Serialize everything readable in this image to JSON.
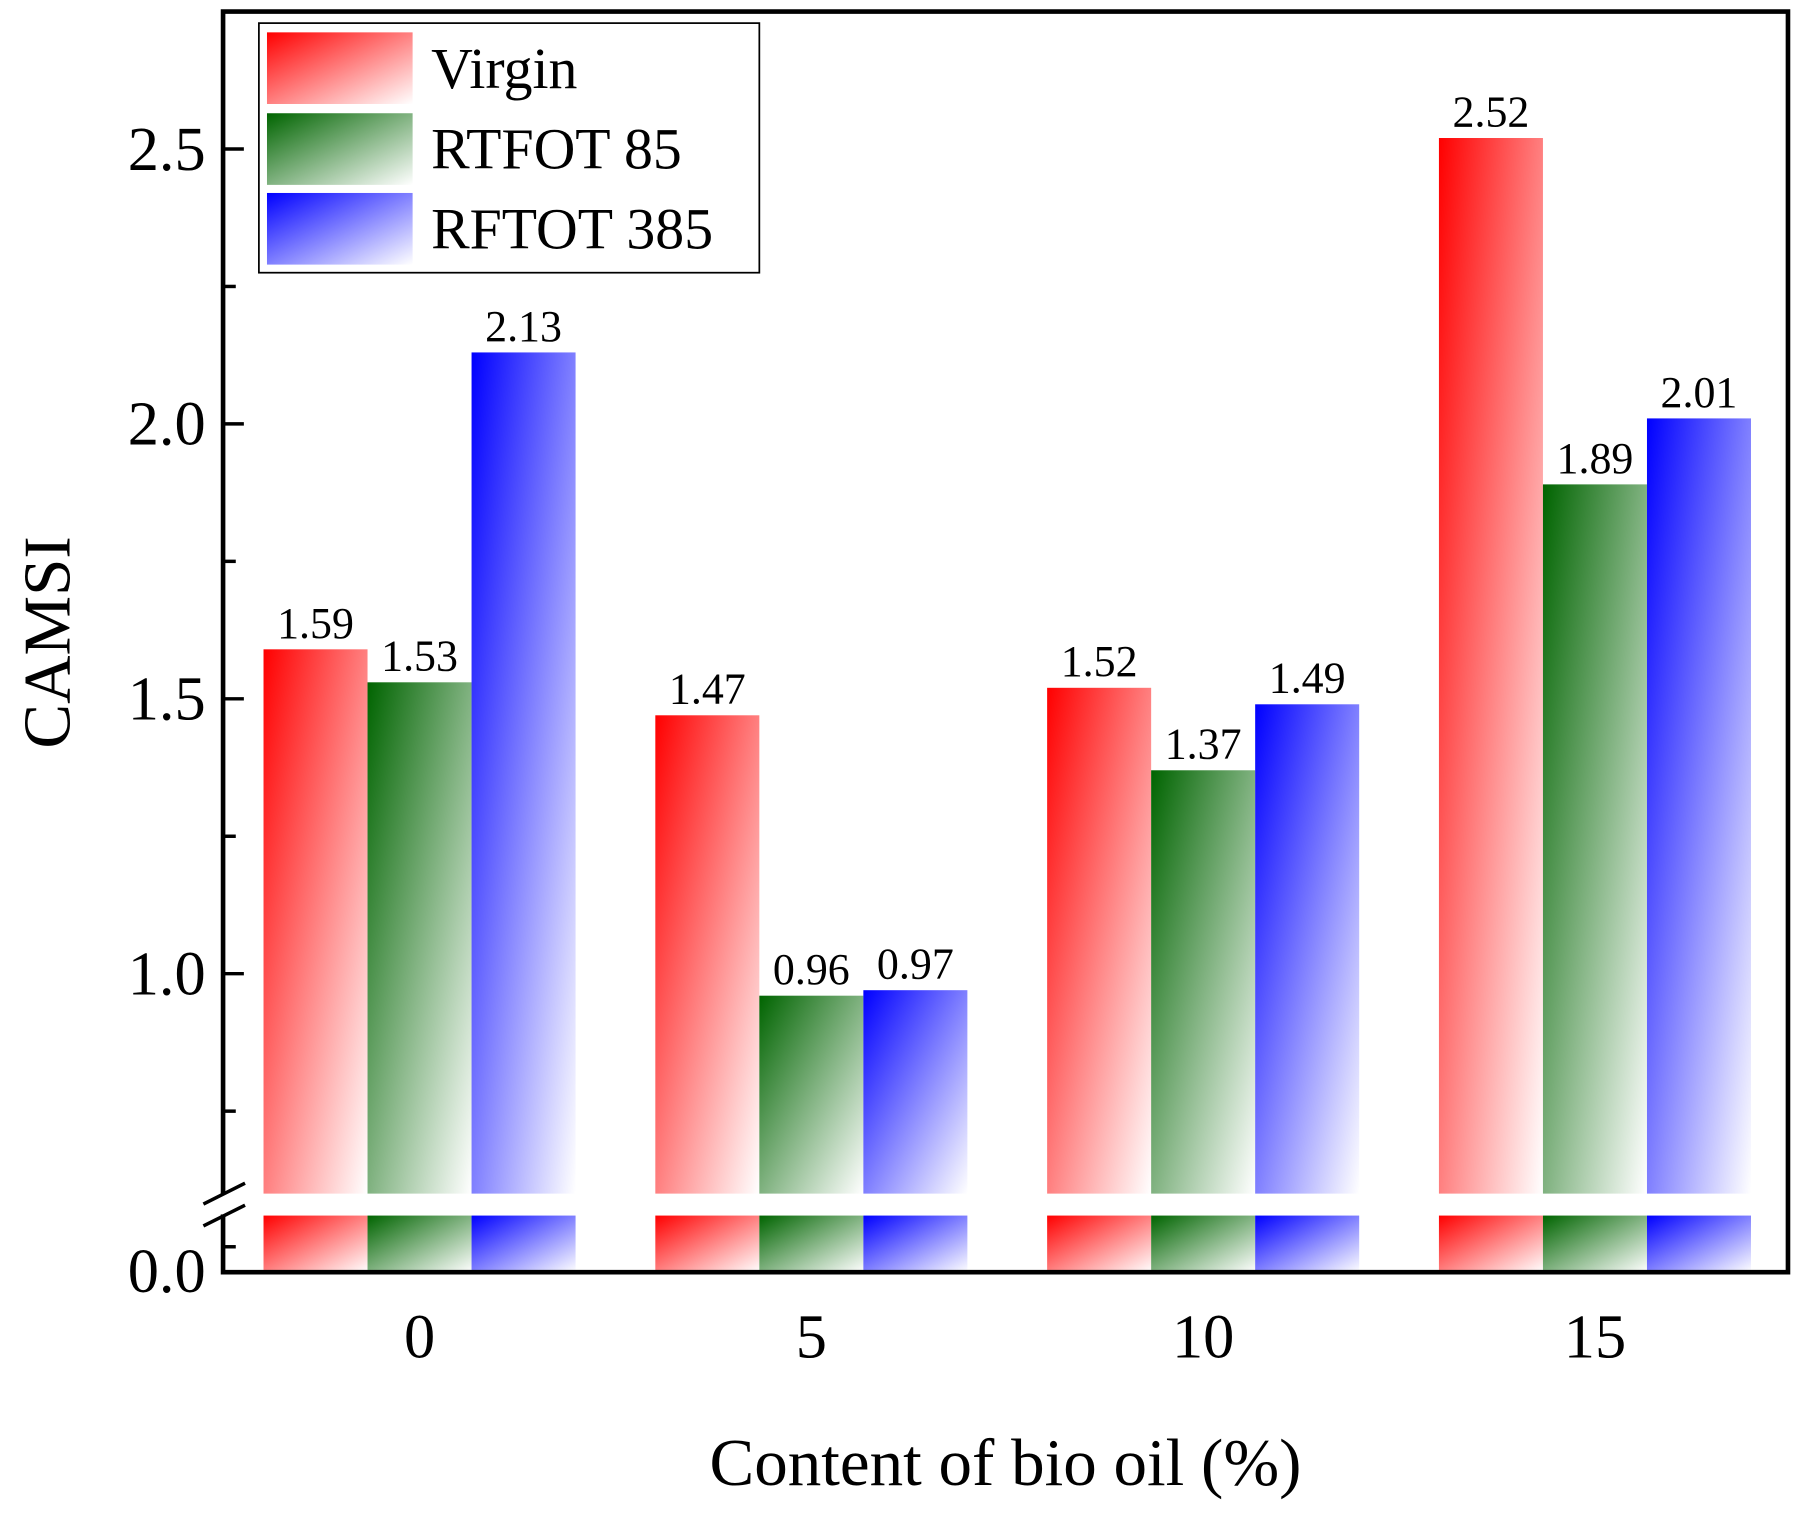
{
  "chart_data": {
    "type": "bar",
    "title": "",
    "xlabel": "Content of bio oil (%)",
    "ylabel": "CAMSI",
    "categories": [
      "0",
      "5",
      "10",
      "15"
    ],
    "series": [
      {
        "name": "Virgin",
        "color": "#ff0000",
        "values": [
          1.59,
          1.47,
          1.52,
          2.52
        ]
      },
      {
        "name": "RTFOT 85",
        "color": "#006400",
        "values": [
          1.53,
          0.96,
          1.37,
          1.89
        ]
      },
      {
        "name": "RFTOT 385",
        "color": "#0000ff",
        "values": [
          2.13,
          0.97,
          1.49,
          2.01
        ]
      }
    ],
    "value_labels": [
      [
        "1.59",
        "1.47",
        "1.52",
        "2.52"
      ],
      [
        "1.53",
        "0.96",
        "1.37",
        "1.89"
      ],
      [
        "2.13",
        "0.97",
        "1.49",
        "2.01"
      ]
    ],
    "ylim_upper": [
      0.6,
      2.75
    ],
    "ylim_lower": [
      0.0,
      0.1
    ],
    "axis_break": true,
    "yticks_upper": [
      "1.0",
      "1.5",
      "2.0",
      "2.5"
    ],
    "yticks_lower": [
      "0.0"
    ],
    "legend_placement": "top-left",
    "grid": false
  }
}
